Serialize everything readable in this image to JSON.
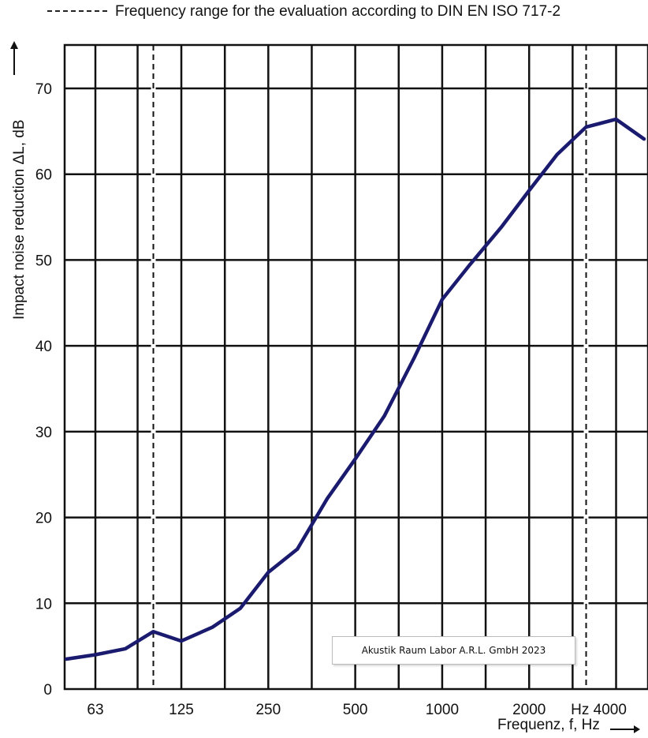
{
  "legend": {
    "text": "Frequency range for the evaluation according to DIN EN ISO 717-2",
    "line_style": "dashed"
  },
  "watermark": {
    "text": "Akustik Raum Labor A.R.L. GmbH 2023"
  },
  "chart_data": {
    "type": "line",
    "xscale": "log",
    "title": "",
    "ylabel": "Impact noise reduction  ΔL, dB",
    "xlabel": "Frequenz, f, Hz",
    "xlim": [
      50,
      5000
    ],
    "ylim": [
      0,
      75
    ],
    "grid": true,
    "x_ticks": [
      63,
      125,
      250,
      500,
      1000,
      2000,
      4000
    ],
    "x_tick_labels": [
      "63",
      "125",
      "250",
      "500",
      "1000",
      "2000",
      "Hz  4000"
    ],
    "y_ticks": [
      0,
      10,
      20,
      30,
      40,
      50,
      60,
      70
    ],
    "evaluation_range_hz": [
      100,
      3150
    ],
    "series": [
      {
        "color": "#1a1a6e",
        "x": [
          50,
          63,
          80,
          100,
          125,
          160,
          200,
          250,
          315,
          400,
          500,
          630,
          800,
          1000,
          1250,
          1600,
          2000,
          2500,
          3150,
          4000,
          5000
        ],
        "y": [
          3.5,
          4.0,
          4.7,
          6.7,
          5.6,
          7.2,
          9.4,
          13.6,
          16.3,
          22.2,
          26.8,
          31.8,
          38.6,
          45.4,
          49.5,
          53.8,
          58.1,
          62.3,
          65.5,
          66.4,
          64.1
        ]
      }
    ]
  }
}
